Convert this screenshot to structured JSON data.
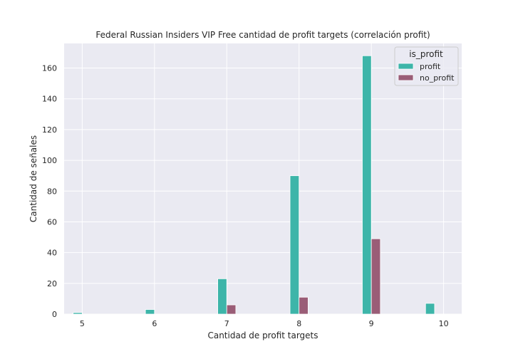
{
  "chart_data": {
    "type": "bar",
    "title": "Federal Russian Insiders VIP Free cantidad de profit targets (correlación profit)",
    "xlabel": "Cantidad de profit targets",
    "ylabel": "Cantidad de señales",
    "x_ticks": [
      "5",
      "6",
      "7",
      "8",
      "9",
      "10"
    ],
    "y_ticks": [
      "0",
      "20",
      "40",
      "60",
      "80",
      "100",
      "120",
      "140",
      "160"
    ],
    "xlim": [
      4.75,
      10.25
    ],
    "ylim": [
      0,
      176
    ],
    "grid": true,
    "legend_title": "is_profit",
    "legend_position": "top-right",
    "series": [
      {
        "name": "profit",
        "color": "#3db5a9",
        "points": [
          {
            "x": 5,
            "y": 1
          },
          {
            "x": 6,
            "y": 3
          },
          {
            "x": 7,
            "y": 23
          },
          {
            "x": 8,
            "y": 90
          },
          {
            "x": 9,
            "y": 168
          },
          {
            "x": 10,
            "y": 7
          }
        ]
      },
      {
        "name": "no_profit",
        "color": "#9a5d77",
        "points": [
          {
            "x": 7,
            "y": 6
          },
          {
            "x": 8,
            "y": 11
          },
          {
            "x": 9,
            "y": 49
          }
        ]
      }
    ]
  },
  "colors": {
    "plot_background": "#eaeaf2",
    "grid": "#ffffff",
    "text": "#262626"
  }
}
